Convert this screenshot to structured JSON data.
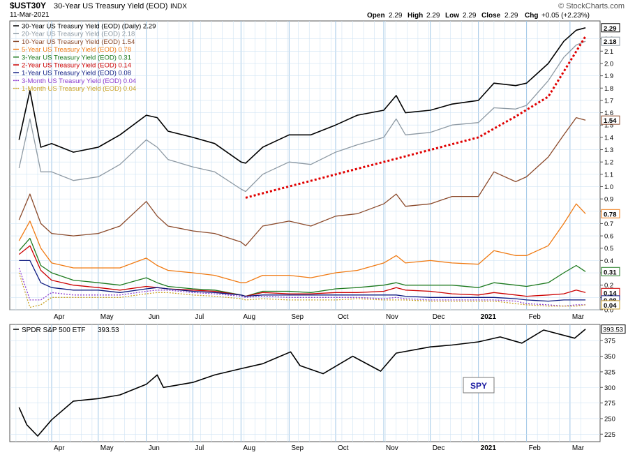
{
  "header": {
    "symbol": "$UST30Y",
    "title": "30-Year US Treasury Yield (EOD)",
    "exchange": "INDX",
    "date": "11-Mar-2021",
    "watermark": "© StockCharts.com",
    "ohlc": {
      "open_label": "Open",
      "open": "2.29",
      "high_label": "High",
      "high": "2.29",
      "low_label": "Low",
      "low": "2.29",
      "close_label": "Close",
      "close": "2.29",
      "chg_label": "Chg",
      "chg": "+0.05 (+2.23%)"
    }
  },
  "chart_data": [
    {
      "type": "line",
      "panel": "yields",
      "ylim": [
        0.0,
        2.3
      ],
      "yticks": [
        "0.0",
        "0.1",
        "0.2",
        "0.3",
        "0.4",
        "0.5",
        "0.6",
        "0.7",
        "0.8",
        "0.9",
        "1.0",
        "1.1",
        "1.2",
        "1.3",
        "1.4",
        "1.5",
        "1.6",
        "1.7",
        "1.8",
        "1.9",
        "2.0",
        "2.1",
        "2.2"
      ],
      "x_months": [
        "Apr",
        "May",
        "Jun",
        "Jul",
        "Aug",
        "Sep",
        "Oct",
        "Nov",
        "Dec",
        "2021",
        "Feb",
        "Mar"
      ],
      "x": [
        "2020-03-11",
        "2020-03-18",
        "2020-03-25",
        "2020-04-01",
        "2020-04-15",
        "2020-05-01",
        "2020-05-15",
        "2020-06-01",
        "2020-06-08",
        "2020-06-15",
        "2020-07-01",
        "2020-07-15",
        "2020-08-01",
        "2020-08-04",
        "2020-08-15",
        "2020-09-01",
        "2020-09-15",
        "2020-10-01",
        "2020-10-15",
        "2020-11-01",
        "2020-11-09",
        "2020-11-15",
        "2020-12-01",
        "2020-12-15",
        "2021-01-01",
        "2021-01-11",
        "2021-01-25",
        "2021-02-01",
        "2021-02-15",
        "2021-02-25",
        "2021-03-05",
        "2021-03-11"
      ],
      "grid": true,
      "legend_position": "top-left",
      "series": [
        {
          "name": "30-Year US Treasury Yield (EOD) (Daily)",
          "last": "2.29",
          "color": "#000000",
          "values": [
            1.38,
            1.78,
            1.32,
            1.35,
            1.28,
            1.32,
            1.42,
            1.58,
            1.56,
            1.45,
            1.4,
            1.35,
            1.2,
            1.19,
            1.32,
            1.42,
            1.42,
            1.5,
            1.58,
            1.62,
            1.74,
            1.6,
            1.62,
            1.67,
            1.7,
            1.84,
            1.82,
            1.84,
            2.0,
            2.18,
            2.27,
            2.29
          ]
        },
        {
          "name": "20-Year US Treasury Yield (EOD)",
          "last": "2.18",
          "color": "#8d99a3",
          "values": [
            1.15,
            1.55,
            1.12,
            1.12,
            1.05,
            1.08,
            1.18,
            1.38,
            1.32,
            1.22,
            1.16,
            1.12,
            0.98,
            0.96,
            1.1,
            1.2,
            1.18,
            1.28,
            1.34,
            1.4,
            1.55,
            1.42,
            1.44,
            1.5,
            1.52,
            1.64,
            1.63,
            1.66,
            1.86,
            2.05,
            2.15,
            2.18
          ]
        },
        {
          "name": "10-Year US Treasury Yield (EOD)",
          "last": "1.54",
          "color": "#8b4a2b",
          "values": [
            0.73,
            0.94,
            0.7,
            0.62,
            0.6,
            0.62,
            0.68,
            0.88,
            0.76,
            0.68,
            0.64,
            0.62,
            0.55,
            0.52,
            0.68,
            0.72,
            0.68,
            0.76,
            0.78,
            0.86,
            0.94,
            0.84,
            0.86,
            0.92,
            0.92,
            1.12,
            1.04,
            1.08,
            1.24,
            1.42,
            1.56,
            1.54
          ]
        },
        {
          "name": "5-Year US Treasury Yield (EOD)",
          "last": "0.78",
          "color": "#f07a12",
          "values": [
            0.56,
            0.72,
            0.5,
            0.38,
            0.34,
            0.34,
            0.34,
            0.42,
            0.36,
            0.32,
            0.3,
            0.28,
            0.22,
            0.22,
            0.28,
            0.28,
            0.26,
            0.3,
            0.32,
            0.38,
            0.44,
            0.38,
            0.4,
            0.38,
            0.37,
            0.48,
            0.44,
            0.44,
            0.52,
            0.7,
            0.86,
            0.78
          ]
        },
        {
          "name": "3-Year US Treasury Yield (EOD)",
          "last": "0.31",
          "color": "#1e7a1e",
          "values": [
            0.48,
            0.58,
            0.36,
            0.3,
            0.24,
            0.22,
            0.2,
            0.26,
            0.22,
            0.19,
            0.17,
            0.16,
            0.12,
            0.11,
            0.15,
            0.15,
            0.14,
            0.17,
            0.18,
            0.2,
            0.22,
            0.2,
            0.2,
            0.2,
            0.18,
            0.22,
            0.2,
            0.19,
            0.22,
            0.3,
            0.36,
            0.31
          ]
        },
        {
          "name": "2-Year US Treasury Yield (EOD)",
          "last": "0.14",
          "color": "#cc0000",
          "values": [
            0.45,
            0.52,
            0.32,
            0.24,
            0.2,
            0.18,
            0.16,
            0.19,
            0.18,
            0.17,
            0.16,
            0.15,
            0.12,
            0.11,
            0.14,
            0.13,
            0.13,
            0.14,
            0.14,
            0.15,
            0.18,
            0.16,
            0.15,
            0.13,
            0.12,
            0.14,
            0.12,
            0.11,
            0.12,
            0.13,
            0.16,
            0.14
          ]
        },
        {
          "name": "1-Year US Treasury Yield (EOD)",
          "last": "0.08",
          "color": "#0d1a80",
          "values": [
            0.4,
            0.4,
            0.22,
            0.18,
            0.16,
            0.16,
            0.14,
            0.17,
            0.18,
            0.17,
            0.15,
            0.14,
            0.12,
            0.11,
            0.12,
            0.12,
            0.12,
            0.12,
            0.12,
            0.12,
            0.12,
            0.11,
            0.1,
            0.1,
            0.1,
            0.1,
            0.09,
            0.08,
            0.07,
            0.08,
            0.08,
            0.08
          ]
        },
        {
          "name": "3-Month US Treasury Yield (EOD)",
          "last": "0.04",
          "color": "#8d3ccf",
          "dash": true,
          "values": [
            0.34,
            0.08,
            0.08,
            0.14,
            0.12,
            0.12,
            0.12,
            0.15,
            0.16,
            0.16,
            0.14,
            0.13,
            0.11,
            0.1,
            0.11,
            0.1,
            0.1,
            0.1,
            0.1,
            0.09,
            0.1,
            0.09,
            0.08,
            0.08,
            0.08,
            0.08,
            0.07,
            0.05,
            0.04,
            0.03,
            0.04,
            0.04
          ]
        },
        {
          "name": "1-Month US Treasury Yield (EOD)",
          "last": "0.04",
          "color": "#c9a227",
          "dash": true,
          "values": [
            0.3,
            0.02,
            0.04,
            0.1,
            0.1,
            0.1,
            0.1,
            0.13,
            0.14,
            0.14,
            0.12,
            0.11,
            0.09,
            0.08,
            0.09,
            0.08,
            0.08,
            0.08,
            0.09,
            0.08,
            0.08,
            0.08,
            0.07,
            0.07,
            0.07,
            0.07,
            0.05,
            0.04,
            0.03,
            0.03,
            0.03,
            0.04
          ]
        }
      ],
      "annotation_trendline": {
        "color": "#e00000",
        "points": [
          {
            "x": "2020-08-04",
            "y": 0.91
          },
          {
            "x": "2021-01-01",
            "y": 1.4
          },
          {
            "x": "2021-01-25",
            "y": 1.57
          },
          {
            "x": "2021-02-15",
            "y": 1.73
          },
          {
            "x": "2021-03-11",
            "y": 2.22
          }
        ]
      }
    },
    {
      "type": "line",
      "panel": "spy",
      "title": "SPDR S&P 500 ETF",
      "last": "393.53",
      "label": "SPY",
      "ylim": [
        213,
        401
      ],
      "yticks": [
        "225",
        "250",
        "275",
        "300",
        "325",
        "350",
        "375"
      ],
      "x_months": [
        "Apr",
        "May",
        "Jun",
        "Jul",
        "Aug",
        "Sep",
        "Oct",
        "Nov",
        "Dec",
        "2021",
        "Feb",
        "Mar"
      ],
      "x": [
        "2020-03-11",
        "2020-03-16",
        "2020-03-23",
        "2020-04-01",
        "2020-04-15",
        "2020-05-01",
        "2020-05-15",
        "2020-06-01",
        "2020-06-08",
        "2020-06-12",
        "2020-07-01",
        "2020-07-15",
        "2020-08-01",
        "2020-08-15",
        "2020-09-02",
        "2020-09-08",
        "2020-09-23",
        "2020-10-12",
        "2020-10-30",
        "2020-11-09",
        "2020-12-01",
        "2020-12-15",
        "2021-01-01",
        "2021-01-15",
        "2021-01-29",
        "2021-02-12",
        "2021-03-04",
        "2021-03-11"
      ],
      "grid": true,
      "series": [
        {
          "name": "SPDR S&P 500 ETF",
          "color": "#000000",
          "values": [
            268,
            240,
            222,
            248,
            278,
            282,
            288,
            305,
            320,
            300,
            308,
            320,
            330,
            338,
            357,
            335,
            322,
            350,
            326,
            355,
            365,
            368,
            373,
            381,
            371,
            392,
            379,
            393.53
          ]
        }
      ]
    }
  ]
}
